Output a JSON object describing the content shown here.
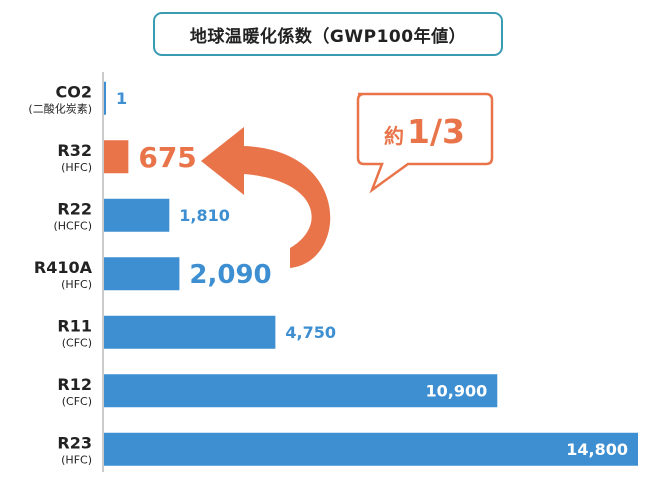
{
  "colors": {
    "bar": "#3d8fd1",
    "highlight": "#e9744a",
    "frame": "#3a9cb0",
    "text": "#222222"
  },
  "chart_data": {
    "type": "bar",
    "orientation": "horizontal",
    "title": "地球温暖化係数（GWP100年値）",
    "categories": [
      {
        "name": "CO2",
        "sub": "(二酸化炭素)"
      },
      {
        "name": "R32",
        "sub": "(HFC)"
      },
      {
        "name": "R22",
        "sub": "(HCFC)"
      },
      {
        "name": "R410A",
        "sub": "(HFC)"
      },
      {
        "name": "R11",
        "sub": "(CFC)"
      },
      {
        "name": "R12",
        "sub": "(CFC)"
      },
      {
        "name": "R23",
        "sub": "(HFC)"
      }
    ],
    "values": [
      1,
      675,
      1810,
      2090,
      4750,
      10900,
      14800
    ],
    "value_labels": [
      "1",
      "675",
      "1,810",
      "2,090",
      "4,750",
      "10,900",
      "14,800"
    ],
    "highlight_index": 1,
    "xlim": [
      0,
      14800
    ],
    "grid": false,
    "annotation": {
      "prefix": "約",
      "text": "1/3"
    }
  }
}
